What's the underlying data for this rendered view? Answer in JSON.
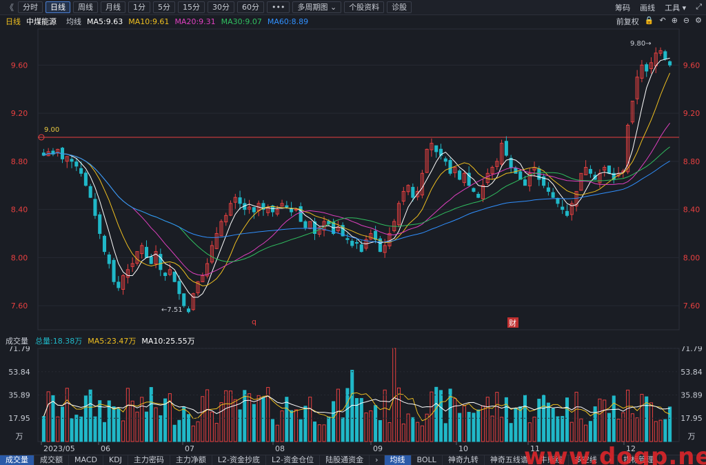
{
  "toolbar": {
    "back": "《",
    "periods": [
      "分时",
      "日线",
      "周线",
      "月线",
      "1分",
      "5分",
      "15分",
      "30分",
      "60分",
      "•••",
      "多周期图 ⌄",
      "个股资料",
      "诊股"
    ],
    "active_index": 1,
    "right": [
      "筹码",
      "画线",
      "工具 ▾"
    ],
    "expand_icon": "⤢"
  },
  "info": {
    "period": "日线",
    "name": "中煤能源",
    "ma_label": "均线",
    "ma5": "MA5:9.63",
    "ma10": "MA10:9.61",
    "ma20": "MA20:9.31",
    "ma30": "MA30:9.07",
    "ma60": "MA60:8.89",
    "adjust": "前复权",
    "colors": {
      "ma5": "#ffffff",
      "ma10": "#f0c020",
      "ma20": "#e040c0",
      "ma30": "#30c060",
      "ma60": "#3090ff",
      "up": "#e84040",
      "down": "#20b8c8"
    }
  },
  "price_axis": [
    "9.60",
    "9.20",
    "8.80",
    "8.40",
    "8.00",
    "7.60"
  ],
  "annotations": {
    "high": "9.80",
    "low": "7.51",
    "level": "9.00",
    "marker1": "q",
    "marker2": "财"
  },
  "volume": {
    "title": "成交量",
    "total": "总量:18.38万",
    "ma5": "MA5:23.47万",
    "ma10": "MA10:25.55万",
    "axis": [
      "71.79",
      "53.84",
      "35.89",
      "17.95",
      "万"
    ]
  },
  "x_axis": [
    "2023/05",
    "06",
    "07",
    "08",
    "09",
    "10",
    "11",
    "12"
  ],
  "bottom_tabs": [
    "成交量",
    "成交额",
    "MACD",
    "KDJ",
    "主力密码",
    "主力净额",
    "L2-资金抄底",
    "L2-资金仓位",
    "陆股通资金",
    "›",
    "均线",
    "BOLL",
    "神奇九转",
    "神奇五线谱",
    "牛熊线",
    "多空线",
    "›",
    "指标管理"
  ],
  "bottom_active": [
    0,
    10
  ],
  "watermark": "www.dogp.net",
  "chart_data": {
    "type": "candlestick",
    "y_range": [
      7.4,
      9.9
    ],
    "volume_range": [
      0,
      71.79
    ],
    "closes": [
      8.85,
      8.88,
      8.86,
      8.9,
      8.82,
      8.84,
      8.8,
      8.76,
      8.7,
      8.6,
      8.5,
      8.35,
      8.2,
      8.05,
      7.95,
      7.8,
      7.75,
      7.85,
      7.9,
      7.95,
      8.05,
      8.1,
      8.0,
      7.95,
      8.05,
      7.9,
      7.85,
      7.9,
      7.8,
      7.7,
      7.6,
      7.55,
      7.7,
      7.8,
      7.85,
      7.95,
      8.1,
      8.2,
      8.3,
      8.35,
      8.45,
      8.5,
      8.45,
      8.4,
      8.42,
      8.38,
      8.45,
      8.4,
      8.42,
      8.38,
      8.4,
      8.45,
      8.42,
      8.38,
      8.4,
      8.3,
      8.25,
      8.3,
      8.2,
      8.25,
      8.3,
      8.28,
      8.2,
      8.25,
      8.18,
      8.15,
      8.1,
      8.12,
      8.05,
      8.15,
      8.2,
      8.15,
      8.05,
      8.1,
      8.2,
      8.3,
      8.45,
      8.55,
      8.6,
      8.5,
      8.55,
      8.7,
      8.9,
      8.95,
      8.88,
      8.85,
      8.8,
      8.7,
      8.75,
      8.65,
      8.7,
      8.6,
      8.55,
      8.5,
      8.6,
      8.7,
      8.75,
      8.8,
      8.95,
      8.85,
      8.75,
      8.7,
      8.65,
      8.6,
      8.7,
      8.75,
      8.65,
      8.6,
      8.55,
      8.5,
      8.45,
      8.4,
      8.35,
      8.45,
      8.55,
      8.7,
      8.75,
      8.7,
      8.65,
      8.7,
      8.75,
      8.7,
      8.65,
      8.7,
      8.72,
      9.1,
      9.3,
      9.5,
      9.6,
      9.55,
      9.62,
      9.7,
      9.72,
      9.65,
      9.6
    ]
  }
}
